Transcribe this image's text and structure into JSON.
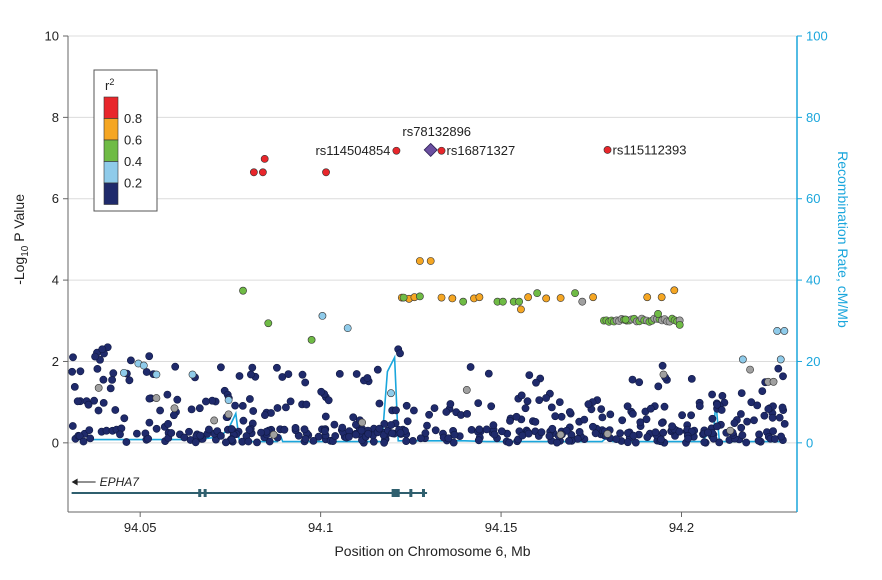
{
  "chart_data": {
    "type": "scatter",
    "title": "",
    "xlabel": "Position on Chromosome 6, Mb",
    "ylabel_left": {
      "pre": "-Log",
      "sub": "10",
      "post": " P Value"
    },
    "ylabel_right": "Recombination Rate, cM/Mb",
    "xlim": [
      94.03,
      94.232
    ],
    "ylim_left": [
      -1.7,
      10
    ],
    "ylim_right": [
      0,
      100
    ],
    "x_ticks": [
      94.05,
      94.1,
      94.15,
      94.2
    ],
    "x_tick_labels": [
      "94.05",
      "94.1",
      "94.15",
      "94.2"
    ],
    "y_ticks_left": [
      0,
      2,
      4,
      6,
      8,
      10
    ],
    "y_ticks_right": [
      0,
      20,
      40,
      60,
      80,
      100
    ],
    "grid": "horizontal",
    "legend": {
      "title": "r",
      "title_sup": "2",
      "placement": "top-left",
      "bins": [
        {
          "color": "#e8262b",
          "label": "0.8"
        },
        {
          "color": "#f5a623",
          "label": "0.6"
        },
        {
          "color": "#6fbb45",
          "label": "0.4"
        },
        {
          "color": "#8fcbea",
          "label": "0.2"
        },
        {
          "color": "#1f2a6b",
          "label": ""
        }
      ],
      "tick_labels": [
        "0.8",
        "0.6",
        "0.4",
        "0.2"
      ]
    },
    "colors": {
      "red": "#e8262b",
      "orange": "#f5a623",
      "green": "#6fbb45",
      "lightblue": "#8fcbea",
      "navy": "#1f2a6b",
      "gray": "#a0a0a0",
      "lead": "#6b4fa0",
      "recomb": "#1aa6dc"
    },
    "lead_snp": {
      "name": "rs78132896",
      "x": 94.1305,
      "y": 7.2
    },
    "labeled_snps": [
      {
        "name": "rs114504854",
        "x": 94.121,
        "y": 7.18
      },
      {
        "name": "rs16871327",
        "x": 94.1335,
        "y": 7.18
      },
      {
        "name": "rs115112393",
        "x": 94.1795,
        "y": 7.2
      }
    ],
    "colored_points": [
      {
        "x": 94.0815,
        "y": 6.65,
        "c": "red"
      },
      {
        "x": 94.084,
        "y": 6.65,
        "c": "red"
      },
      {
        "x": 94.0845,
        "y": 6.98,
        "c": "red"
      },
      {
        "x": 94.1015,
        "y": 6.65,
        "c": "red"
      },
      {
        "x": 94.1275,
        "y": 4.47,
        "c": "orange"
      },
      {
        "x": 94.1305,
        "y": 4.47,
        "c": "orange"
      },
      {
        "x": 94.1225,
        "y": 3.57,
        "c": "orange"
      },
      {
        "x": 94.1245,
        "y": 3.54,
        "c": "orange"
      },
      {
        "x": 94.126,
        "y": 3.58,
        "c": "orange"
      },
      {
        "x": 94.1335,
        "y": 3.57,
        "c": "orange"
      },
      {
        "x": 94.1365,
        "y": 3.55,
        "c": "orange"
      },
      {
        "x": 94.1425,
        "y": 3.55,
        "c": "orange"
      },
      {
        "x": 94.144,
        "y": 3.58,
        "c": "orange"
      },
      {
        "x": 94.1555,
        "y": 3.28,
        "c": "orange"
      },
      {
        "x": 94.1575,
        "y": 3.58,
        "c": "orange"
      },
      {
        "x": 94.1625,
        "y": 3.55,
        "c": "orange"
      },
      {
        "x": 94.1665,
        "y": 3.56,
        "c": "orange"
      },
      {
        "x": 94.1755,
        "y": 3.58,
        "c": "orange"
      },
      {
        "x": 94.1905,
        "y": 3.58,
        "c": "orange"
      },
      {
        "x": 94.1945,
        "y": 3.58,
        "c": "orange"
      },
      {
        "x": 94.198,
        "y": 3.75,
        "c": "orange"
      },
      {
        "x": 94.0785,
        "y": 3.74,
        "c": "green"
      },
      {
        "x": 94.0855,
        "y": 2.94,
        "c": "green"
      },
      {
        "x": 94.0975,
        "y": 2.53,
        "c": "green"
      },
      {
        "x": 94.123,
        "y": 3.57,
        "c": "green"
      },
      {
        "x": 94.1275,
        "y": 3.6,
        "c": "green"
      },
      {
        "x": 94.1395,
        "y": 3.47,
        "c": "green"
      },
      {
        "x": 94.149,
        "y": 3.47,
        "c": "green"
      },
      {
        "x": 94.1505,
        "y": 3.47,
        "c": "green"
      },
      {
        "x": 94.1535,
        "y": 3.47,
        "c": "green"
      },
      {
        "x": 94.155,
        "y": 3.47,
        "c": "green"
      },
      {
        "x": 94.16,
        "y": 3.68,
        "c": "green"
      },
      {
        "x": 94.1705,
        "y": 3.68,
        "c": "green"
      },
      {
        "x": 94.1845,
        "y": 3.03,
        "c": "green"
      },
      {
        "x": 94.1935,
        "y": 3.17,
        "c": "green"
      },
      {
        "x": 94.1995,
        "y": 2.9,
        "c": "green"
      },
      {
        "x": 94.1005,
        "y": 3.12,
        "c": "lightblue"
      },
      {
        "x": 94.1075,
        "y": 2.82,
        "c": "lightblue"
      },
      {
        "x": 94.0455,
        "y": 1.72,
        "c": "lightblue"
      },
      {
        "x": 94.0495,
        "y": 1.95,
        "c": "lightblue"
      },
      {
        "x": 94.051,
        "y": 1.9,
        "c": "lightblue"
      },
      {
        "x": 94.0545,
        "y": 1.68,
        "c": "lightblue"
      },
      {
        "x": 94.0645,
        "y": 1.68,
        "c": "lightblue"
      },
      {
        "x": 94.0745,
        "y": 1.05,
        "c": "lightblue"
      },
      {
        "x": 94.1195,
        "y": 1.22,
        "c": "lightblue"
      },
      {
        "x": 94.217,
        "y": 2.05,
        "c": "lightblue"
      },
      {
        "x": 94.2265,
        "y": 2.75,
        "c": "lightblue"
      },
      {
        "x": 94.2285,
        "y": 2.75,
        "c": "lightblue"
      },
      {
        "x": 94.2275,
        "y": 2.05,
        "c": "lightblue"
      },
      {
        "x": 94.0385,
        "y": 1.35,
        "c": "gray"
      },
      {
        "x": 94.0545,
        "y": 1.1,
        "c": "gray"
      },
      {
        "x": 94.0595,
        "y": 0.85,
        "c": "gray"
      },
      {
        "x": 94.0705,
        "y": 0.55,
        "c": "gray"
      },
      {
        "x": 94.0745,
        "y": 0.7,
        "c": "gray"
      },
      {
        "x": 94.087,
        "y": 0.2,
        "c": "gray"
      },
      {
        "x": 94.1115,
        "y": 0.5,
        "c": "gray"
      },
      {
        "x": 94.1405,
        "y": 1.3,
        "c": "gray"
      },
      {
        "x": 94.1725,
        "y": 3.47,
        "c": "gray"
      },
      {
        "x": 94.195,
        "y": 1.68,
        "c": "gray"
      },
      {
        "x": 94.219,
        "y": 1.8,
        "c": "gray"
      },
      {
        "x": 94.224,
        "y": 1.5,
        "c": "gray"
      },
      {
        "x": 94.2255,
        "y": 1.5,
        "c": "gray"
      },
      {
        "x": 94.1665,
        "y": 0.2,
        "c": "gray"
      },
      {
        "x": 94.1795,
        "y": 0.22,
        "c": "gray"
      },
      {
        "x": 94.2135,
        "y": 0.3,
        "c": "gray"
      }
    ],
    "green_band": {
      "x_start": 94.1785,
      "x_end": 94.1995,
      "y": 3.02
    },
    "navy_points": {
      "count": 470,
      "x_range": [
        94.031,
        94.229
      ],
      "y_range": [
        0,
        2.35
      ]
    },
    "recombination_rate": {
      "x": [
        94.031,
        94.065,
        94.072,
        94.0745,
        94.0765,
        94.0775,
        94.088,
        94.089,
        94.0895,
        94.117,
        94.1185,
        94.1205,
        94.1215,
        94.14,
        94.146,
        94.178,
        94.1795,
        94.181,
        94.2055,
        94.209,
        94.2095,
        94.2105,
        94.22,
        94.229
      ],
      "y": [
        0.8,
        0.8,
        1.4,
        3.5,
        7.2,
        0.3,
        0.3,
        1.5,
        0.3,
        0.3,
        17.5,
        21,
        0.5,
        0.5,
        0.3,
        0.3,
        1.5,
        0.3,
        0.3,
        3.8,
        10.2,
        0.3,
        0.3,
        0.3
      ]
    },
    "gene": {
      "name": "EPHA7",
      "direction": "left",
      "x_start": 94.031,
      "x_end": 94.1295,
      "exons": [
        94.0665,
        94.068,
        94.1205,
        94.1215,
        94.125,
        94.1285
      ]
    }
  }
}
